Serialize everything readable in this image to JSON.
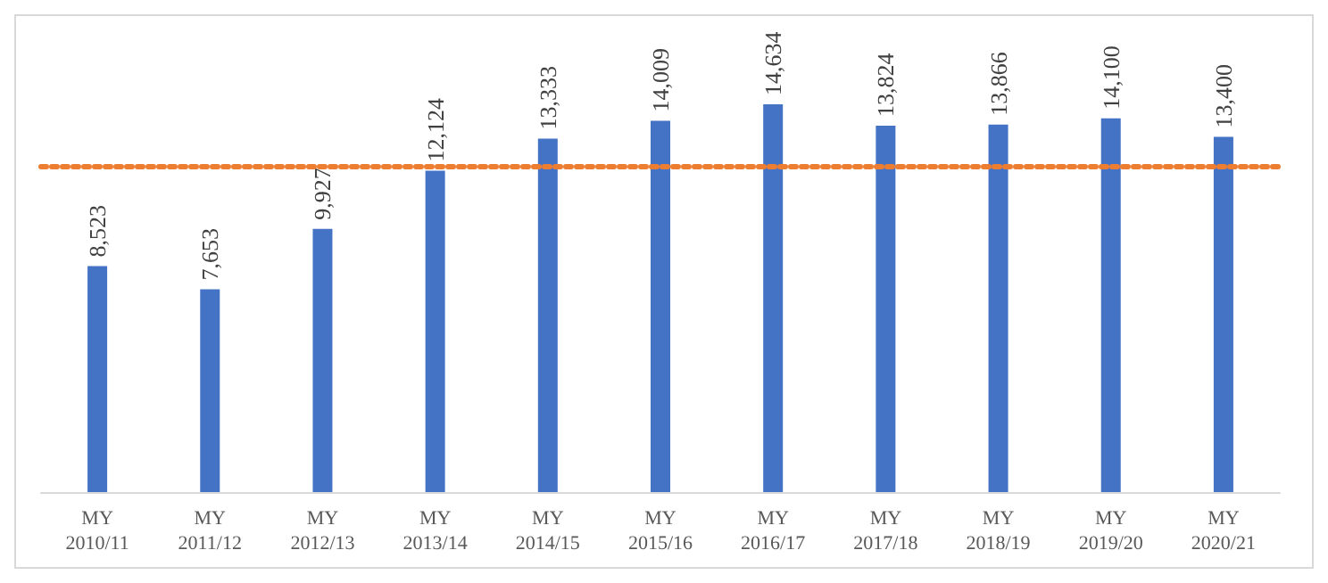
{
  "chart_data": {
    "type": "bar",
    "categories": [
      "MY\n2010/11",
      "MY\n2011/12",
      "MY\n2012/13",
      "MY\n2013/14",
      "MY\n2014/15",
      "MY\n2015/16",
      "MY\n2016/17",
      "MY\n2017/18",
      "MY\n2018/19",
      "MY\n2019/20",
      "MY\n2020/21"
    ],
    "values": [
      8523,
      7653,
      9927,
      12124,
      13333,
      14009,
      14634,
      13824,
      13866,
      14100,
      13400
    ],
    "value_labels": [
      "8,523",
      "7,653",
      "9,927",
      "12,124",
      "13,333",
      "14,009",
      "14,634",
      "13,824",
      "13,866",
      "14,100",
      "13,400"
    ],
    "color": "#4472c4",
    "ref_lines": [
      {
        "axis": "y",
        "value": 12308,
        "color": "#ed7d31",
        "line_style": "dotted"
      }
    ]
  }
}
